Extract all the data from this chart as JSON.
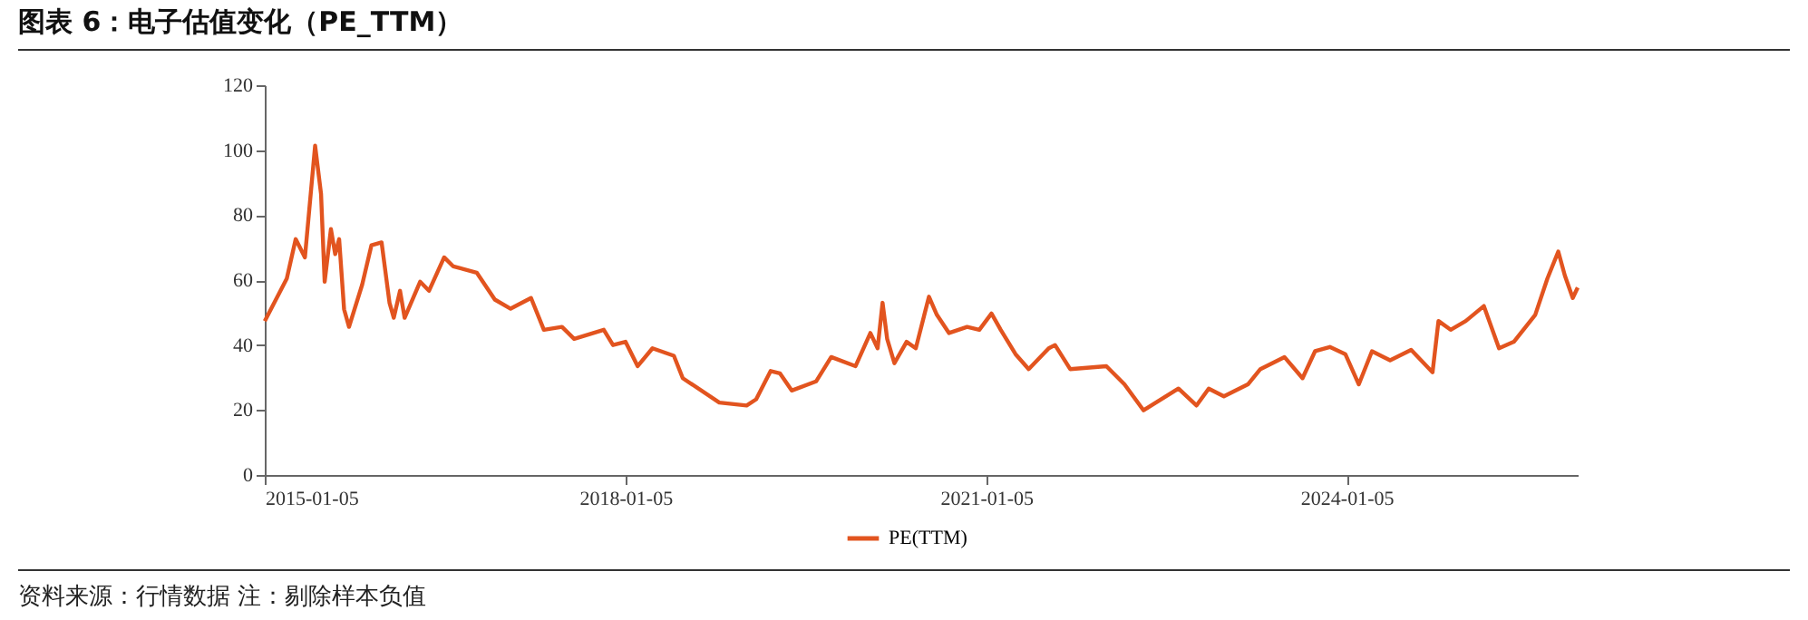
{
  "chart_data": {
    "type": "line",
    "title": "图表 6：电子估值变化（PE_TTM）",
    "annotations": [
      "资料来源：行情数据 注：剔除样本负值"
    ],
    "x": [
      "2015-01-05",
      "2015-03-13",
      "2015-04-09",
      "2015-05-07",
      "2015-06-07",
      "2015-06-25",
      "2015-07-06",
      "2015-07-25",
      "2015-08-07",
      "2015-08-19",
      "2015-09-03",
      "2015-09-18",
      "2015-10-28",
      "2015-11-25",
      "2015-12-26",
      "2016-01-19",
      "2016-02-01",
      "2016-02-20",
      "2016-03-05",
      "2016-04-21",
      "2016-05-18",
      "2016-07-03",
      "2016-07-31",
      "2016-10-10",
      "2016-12-04",
      "2017-01-21",
      "2017-03-24",
      "2017-05-02",
      "2017-06-26",
      "2017-08-02",
      "2017-10-31",
      "2017-11-28",
      "2018-01-05",
      "2018-02-11",
      "2018-03-28",
      "2018-06-01",
      "2018-06-28",
      "2018-10-17",
      "2019-01-08",
      "2019-02-06",
      "2019-03-22",
      "2019-04-19",
      "2019-05-25",
      "2019-08-07",
      "2019-09-22",
      "2019-12-05",
      "2020-01-19",
      "2020-02-10",
      "2020-02-25",
      "2020-03-10",
      "2020-04-01",
      "2020-05-08",
      "2020-06-05",
      "2020-07-15",
      "2020-08-08",
      "2020-09-14",
      "2020-11-08",
      "2020-12-15",
      "2021-01-21",
      "2021-02-18",
      "2021-04-04",
      "2021-05-14",
      "2021-07-14",
      "2021-08-02",
      "2021-09-17",
      "2022-01-05",
      "2022-03-01",
      "2022-04-28",
      "2022-08-12",
      "2022-10-06",
      "2022-11-12",
      "2022-12-28",
      "2023-03-11",
      "2023-04-18",
      "2023-06-30",
      "2023-08-24",
      "2023-10-01",
      "2023-11-15",
      "2024-01-01",
      "2024-02-11",
      "2024-03-22",
      "2024-05-16",
      "2024-07-19",
      "2024-09-22",
      "2024-10-10",
      "2024-11-16",
      "2025-01-01",
      "2025-02-25",
      "2025-04-12",
      "2025-05-27",
      "2025-07-31",
      "2025-09-06",
      "2025-10-09",
      "2025-10-29",
      "2025-11-22",
      "2025-12-07"
    ],
    "series": [
      {
        "name": "PE(TTM)",
        "color": "#e2541f",
        "values": [
          47.4,
          60.5,
          72.6,
          67,
          101.4,
          86.5,
          59.5,
          75.7,
          68,
          72.6,
          51,
          45.6,
          58.6,
          70.7,
          71.6,
          53,
          48.4,
          56.7,
          48.4,
          59.5,
          56.7,
          67,
          64.2,
          62.3,
          54,
          51.2,
          54.5,
          44.7,
          45.6,
          41.9,
          44.7,
          40,
          41,
          33.5,
          39,
          36.7,
          29.8,
          22.3,
          21.4,
          23.3,
          32,
          31.3,
          26,
          28.8,
          36.3,
          33.5,
          43.7,
          39,
          53,
          41.9,
          34.4,
          41,
          39,
          54.9,
          49.3,
          43.7,
          45.6,
          44.7,
          49.7,
          44.7,
          37.2,
          32.6,
          39,
          40,
          32.6,
          33.5,
          27.9,
          19.9,
          26.6,
          21.4,
          26.6,
          24.2,
          27.9,
          32.6,
          36.3,
          29.8,
          38.1,
          39.4,
          37.2,
          27.9,
          38.1,
          35.3,
          38.5,
          31.6,
          47.4,
          44.7,
          47.4,
          52,
          39,
          41,
          49.3,
          60.5,
          68.8,
          61.4,
          54.5,
          57.7
        ]
      }
    ],
    "xlim": [
      "2015-01-05",
      "2025-12-07"
    ],
    "xticks": [
      "2015-01-05",
      "2018-01-05",
      "2021-01-05",
      "2024-01-05"
    ],
    "ylim": [
      0,
      120
    ],
    "yticks": [
      0,
      20,
      40,
      60,
      80,
      100,
      120
    ],
    "grid": false,
    "legend": "bottom",
    "marker": "none",
    "line_style": "solid"
  }
}
